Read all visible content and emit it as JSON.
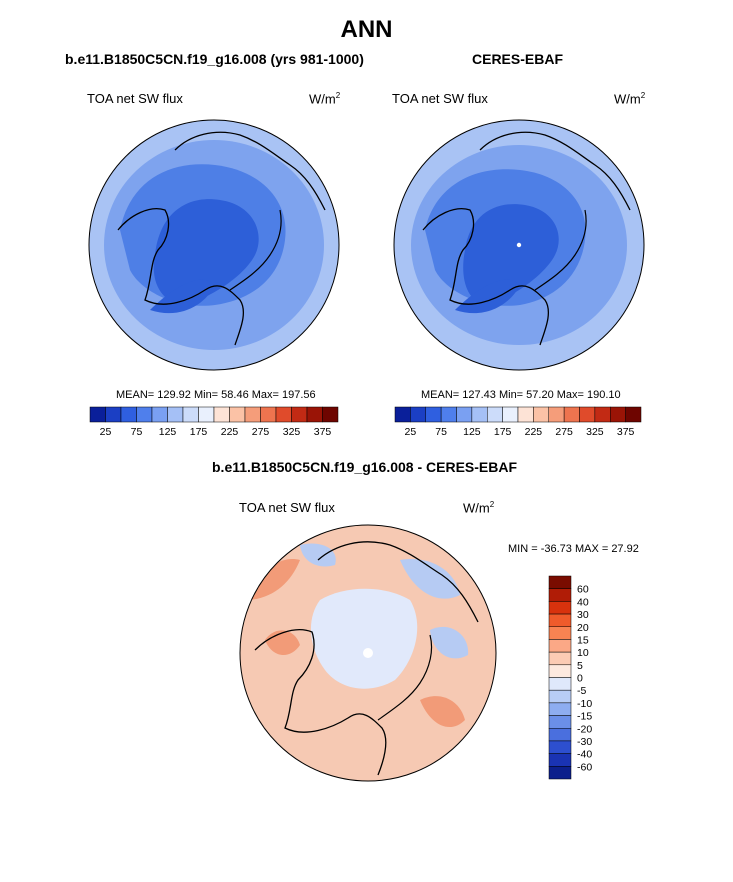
{
  "figure": {
    "title": "ANN"
  },
  "panels": [
    {
      "title": "b.e11.B1850C5CN.f19_g16.008 (yrs 981-1000)",
      "variable": "TOA net SW flux",
      "units_base": "W/m",
      "units_exp": "2",
      "stats": "MEAN= 129.92  Min=  58.46  Max= 197.56"
    },
    {
      "title": "CERES-EBAF",
      "variable": "TOA net SW flux",
      "units_base": "W/m",
      "units_exp": "2",
      "stats": "MEAN= 127.43  Min=  57.20  Max= 190.10"
    },
    {
      "title": "b.e11.B1850C5CN.f19_g16.008 - CERES-EBAF",
      "variable": "TOA net SW flux",
      "units_base": "W/m",
      "units_exp": "2",
      "stats": "MIN = -36.73 MAX =  27.92"
    }
  ],
  "colorbars": {
    "absolute": {
      "tick_labels": [
        "25",
        "75",
        "125",
        "175",
        "225",
        "275",
        "325",
        "375"
      ],
      "colors": [
        "#0a1f9a",
        "#1b3fc4",
        "#2f5fe0",
        "#4f7fec",
        "#7aa0f2",
        "#a5c0f6",
        "#ccdcfa",
        "#e9f0fd",
        "#fde3d6",
        "#fbc2a6",
        "#f59d7a",
        "#ee744f",
        "#e04b2b",
        "#c22a14",
        "#9a1406",
        "#6e0500"
      ]
    },
    "difference": {
      "tick_labels": [
        "60",
        "40",
        "30",
        "20",
        "15",
        "10",
        "5",
        "0",
        "-5",
        "-10",
        "-15",
        "-20",
        "-30",
        "-40",
        "-60"
      ],
      "colors": [
        "#7a0c00",
        "#b01c06",
        "#d8320d",
        "#ef5b2b",
        "#f88352",
        "#fba886",
        "#fccbb4",
        "#fde9df",
        "#dfe8fb",
        "#b8cdf6",
        "#8eadf0",
        "#6b8fe8",
        "#4a6fde",
        "#2d4fcf",
        "#1a33b3",
        "#0c1f8c"
      ]
    },
    "map_fill": {
      "ocean_low": "#a9c3f4",
      "mid": "#7ea3ee",
      "high": "#4e7fe6",
      "core": "#2d5fd8",
      "diff_bg": "#f6c9b3",
      "diff_warm": "#f29b78",
      "diff_cool": "#b6cbf3",
      "diff_ice": "#e1e9fb"
    }
  }
}
